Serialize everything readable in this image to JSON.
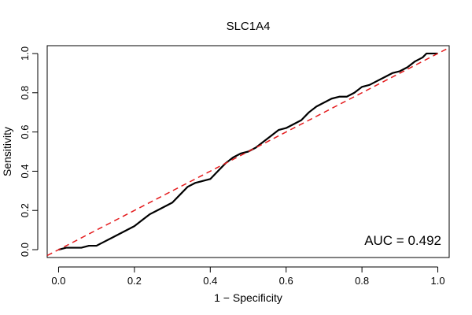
{
  "chart_data": {
    "type": "line",
    "title": "SLC1A4",
    "xlabel": "1 − Specificity",
    "ylabel": "Sensitivity",
    "xlim": [
      -0.03,
      1.03
    ],
    "ylim": [
      -0.04,
      1.04
    ],
    "xticks": [
      0.0,
      0.2,
      0.4,
      0.6,
      0.8,
      1.0
    ],
    "yticks": [
      0.0,
      0.2,
      0.4,
      0.6,
      0.8,
      1.0
    ],
    "xtick_labels": [
      "0.0",
      "0.2",
      "0.4",
      "0.6",
      "0.8",
      "1.0"
    ],
    "ytick_labels": [
      "0.0",
      "0.2",
      "0.4",
      "0.6",
      "0.8",
      "1.0"
    ],
    "grid": false,
    "annotation": "AUC = 0.492",
    "series": [
      {
        "style": "solid",
        "color": "#000000",
        "points": [
          [
            0.0,
            0.0
          ],
          [
            0.02,
            0.01
          ],
          [
            0.06,
            0.01
          ],
          [
            0.08,
            0.02
          ],
          [
            0.1,
            0.02
          ],
          [
            0.12,
            0.04
          ],
          [
            0.14,
            0.06
          ],
          [
            0.16,
            0.08
          ],
          [
            0.18,
            0.1
          ],
          [
            0.2,
            0.12
          ],
          [
            0.22,
            0.15
          ],
          [
            0.24,
            0.18
          ],
          [
            0.26,
            0.2
          ],
          [
            0.28,
            0.22
          ],
          [
            0.3,
            0.24
          ],
          [
            0.32,
            0.28
          ],
          [
            0.34,
            0.32
          ],
          [
            0.36,
            0.34
          ],
          [
            0.38,
            0.35
          ],
          [
            0.4,
            0.36
          ],
          [
            0.42,
            0.4
          ],
          [
            0.44,
            0.44
          ],
          [
            0.46,
            0.47
          ],
          [
            0.48,
            0.49
          ],
          [
            0.5,
            0.5
          ],
          [
            0.52,
            0.52
          ],
          [
            0.54,
            0.55
          ],
          [
            0.56,
            0.58
          ],
          [
            0.58,
            0.61
          ],
          [
            0.6,
            0.62
          ],
          [
            0.62,
            0.64
          ],
          [
            0.64,
            0.66
          ],
          [
            0.66,
            0.7
          ],
          [
            0.68,
            0.73
          ],
          [
            0.7,
            0.75
          ],
          [
            0.72,
            0.77
          ],
          [
            0.74,
            0.78
          ],
          [
            0.76,
            0.78
          ],
          [
            0.78,
            0.8
          ],
          [
            0.8,
            0.83
          ],
          [
            0.82,
            0.84
          ],
          [
            0.84,
            0.86
          ],
          [
            0.86,
            0.88
          ],
          [
            0.88,
            0.9
          ],
          [
            0.9,
            0.91
          ],
          [
            0.92,
            0.93
          ],
          [
            0.94,
            0.96
          ],
          [
            0.96,
            0.98
          ],
          [
            0.97,
            1.0
          ],
          [
            1.0,
            1.0
          ]
        ]
      },
      {
        "style": "dashed",
        "color": "#e41a1c",
        "points": [
          [
            -0.03,
            -0.03
          ],
          [
            1.03,
            1.03
          ]
        ]
      }
    ]
  }
}
